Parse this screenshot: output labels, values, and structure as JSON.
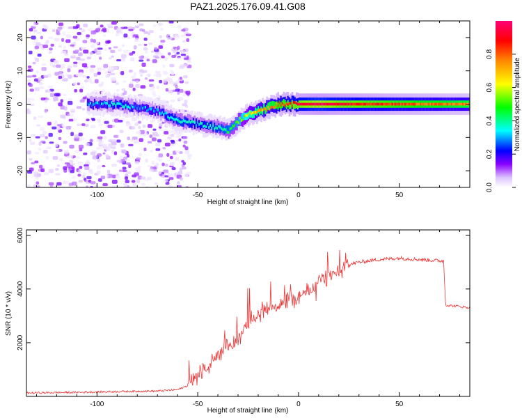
{
  "title": "PAZ1.2025.176.09.41.G08",
  "chart_data": [
    {
      "type": "heatmap",
      "title": "PAZ1.2025.176.09.41.G08",
      "xlabel": "Height of straight line (km)",
      "ylabel": "Frequency (Hz)",
      "xlim": [
        -135,
        85
      ],
      "ylim": [
        -25,
        25
      ],
      "x_ticks": [
        -100,
        -50,
        0,
        50
      ],
      "y_ticks": [
        -20,
        -10,
        0,
        10,
        20
      ],
      "colorbar": {
        "label": "Normalized spectral amplitude",
        "range": [
          0,
          1
        ],
        "ticks": [
          0.0,
          0.2,
          0.4,
          0.6,
          0.8
        ],
        "colors": [
          "#ffffff",
          "#cc99ff",
          "#8800ff",
          "#0000ff",
          "#00ffff",
          "#00ff00",
          "#ffff00",
          "#ff8800",
          "#ff0000",
          "#ff0088"
        ]
      },
      "ridge": {
        "x": [
          -100,
          -90,
          -80,
          -70,
          -60,
          -50,
          -40,
          -35,
          -30,
          -25,
          -20,
          -10,
          0,
          10,
          20,
          40,
          60,
          85
        ],
        "y": [
          0,
          0,
          -1,
          -2,
          -5,
          -6,
          -7,
          -8,
          -5,
          -3,
          -2,
          0,
          0,
          0,
          0,
          0,
          0,
          0
        ],
        "amplitude": [
          0.3,
          0.35,
          0.3,
          0.3,
          0.4,
          0.35,
          0.4,
          0.45,
          0.5,
          0.6,
          0.7,
          0.8,
          0.9,
          0.95,
          0.9,
          0.85,
          0.8,
          0.75
        ]
      },
      "noise_region_x": [
        -135,
        -55
      ],
      "grid": false
    },
    {
      "type": "line",
      "xlabel": "Height of straight line (km)",
      "ylabel": "SNR (10 * v/v)",
      "xlim": [
        -135,
        85
      ],
      "ylim": [
        0,
        6200
      ],
      "x_ticks": [
        -100,
        -50,
        0,
        50
      ],
      "y_ticks": [
        2000,
        4000,
        6000
      ],
      "color": "#ee3333",
      "series": [
        {
          "x": [
            -135,
            -110,
            -90,
            -70,
            -60,
            -55,
            -50,
            -45,
            -40,
            -35,
            -30,
            -27,
            -25,
            -20,
            -15,
            -10,
            -5,
            0,
            5,
            8,
            10,
            15,
            20,
            25,
            30,
            40,
            50,
            60,
            70,
            72,
            73,
            80,
            85
          ],
          "y": [
            130,
            150,
            180,
            200,
            250,
            400,
            800,
            1100,
            1500,
            1800,
            2100,
            2600,
            2800,
            3100,
            3300,
            3400,
            3600,
            3700,
            3900,
            4100,
            4300,
            4500,
            4600,
            4900,
            5000,
            5100,
            5150,
            5100,
            5050,
            5050,
            3400,
            3350,
            3300
          ]
        }
      ],
      "grid": false
    }
  ]
}
